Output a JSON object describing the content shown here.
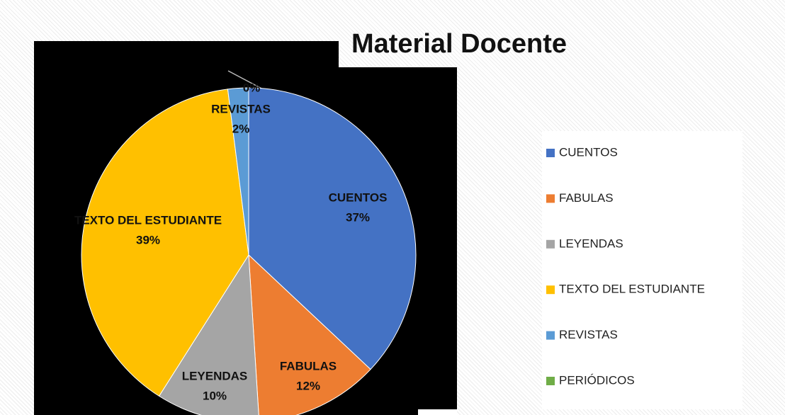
{
  "chart_data": {
    "type": "pie",
    "title": "Material Docente",
    "categories": [
      "CUENTOS",
      "FABULAS",
      "LEYENDAS",
      "TEXTO DEL ESTUDIANTE",
      "REVISTAS",
      "PERIÓDICOS"
    ],
    "values": [
      37,
      12,
      10,
      39,
      2,
      0
    ],
    "value_labels": [
      "37%",
      "12%",
      "10%",
      "39%",
      "2%",
      "0%"
    ],
    "colors": [
      "#4472c4",
      "#ed7d31",
      "#a5a5a5",
      "#ffc000",
      "#5b9bd5",
      "#70ad47"
    ],
    "legend": "right"
  }
}
